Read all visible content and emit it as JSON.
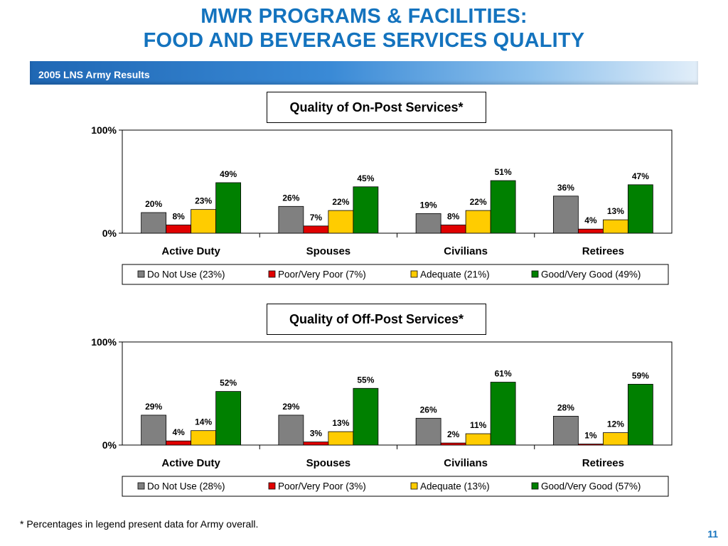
{
  "slide": {
    "title_line1": "MWR PROGRAMS & FACILITIES:",
    "title_line2": "FOOD AND BEVERAGE SERVICES QUALITY",
    "banner": "2005 LNS Army Results",
    "footnote": "* Percentages in legend present data for Army overall.",
    "page_number": "11"
  },
  "colors": {
    "title": "#1473be",
    "do_not_use": "#808080",
    "poor": "#e00000",
    "adequate": "#ffcc00",
    "good": "#008000"
  },
  "chart_data": [
    {
      "type": "bar",
      "title": "Quality of On-Post Services*",
      "categories": [
        "Active Duty",
        "Spouses",
        "Civilians",
        "Retirees"
      ],
      "series": [
        {
          "name": "Do Not Use (23%)",
          "values": [
            20,
            26,
            19,
            36
          ]
        },
        {
          "name": "Poor/Very Poor (7%)",
          "values": [
            8,
            7,
            8,
            4
          ]
        },
        {
          "name": "Adequate (21%)",
          "values": [
            23,
            22,
            22,
            13
          ]
        },
        {
          "name": "Good/Very Good (49%)",
          "values": [
            49,
            45,
            51,
            47
          ]
        }
      ],
      "ylim": [
        0,
        100
      ],
      "yticks": [
        "0%",
        "100%"
      ],
      "legend": "bottom",
      "grid": false
    },
    {
      "type": "bar",
      "title": "Quality of Off-Post Services*",
      "categories": [
        "Active Duty",
        "Spouses",
        "Civilians",
        "Retirees"
      ],
      "series": [
        {
          "name": "Do Not Use (28%)",
          "values": [
            29,
            29,
            26,
            28
          ]
        },
        {
          "name": "Poor/Very Poor (3%)",
          "values": [
            4,
            3,
            2,
            1
          ]
        },
        {
          "name": "Adequate (13%)",
          "values": [
            14,
            13,
            11,
            12
          ]
        },
        {
          "name": "Good/Very Good (57%)",
          "values": [
            52,
            55,
            61,
            59
          ]
        }
      ],
      "ylim": [
        0,
        100
      ],
      "yticks": [
        "0%",
        "100%"
      ],
      "legend": "bottom",
      "grid": false
    }
  ]
}
